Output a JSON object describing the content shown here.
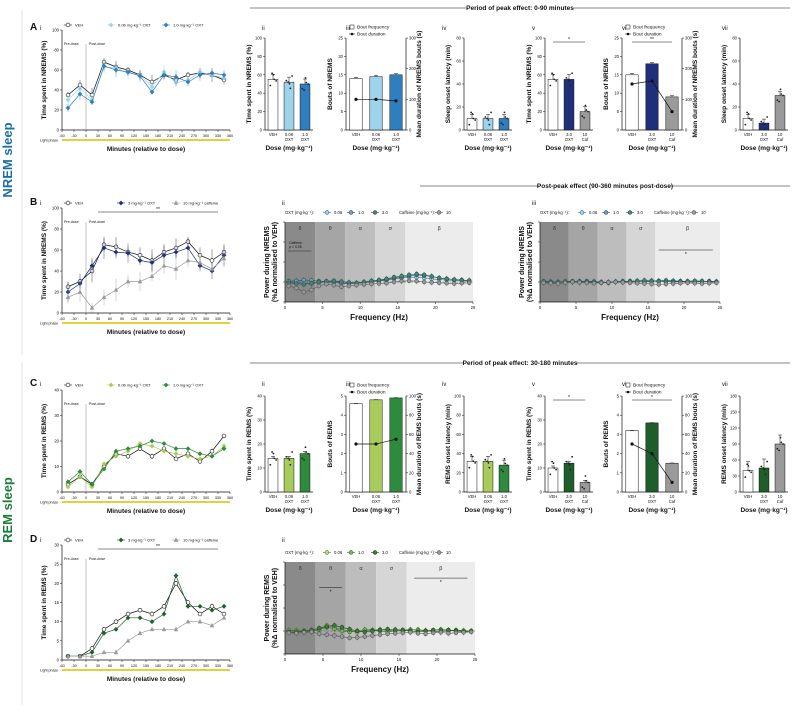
{
  "side_labels": {
    "nrem": "NREM sleep",
    "rem": "REM sleep"
  },
  "headers": {
    "a": "Period of peak effect: 0-90 minutes",
    "b": "Post-peak effect (90-360 minutes post-dose)",
    "c": "Period of peak effect: 30-180 minutes"
  },
  "panel_letters": {
    "A": "A",
    "B": "B",
    "C": "C",
    "D": "D"
  },
  "sub_numerals": [
    "i",
    "ii",
    "iii",
    "iv",
    "v",
    "vi",
    "vii"
  ],
  "colors": {
    "veh": "#ffffff",
    "oxt_low": "#9fd3ec",
    "oxt_high": "#2f7fbf",
    "oxt3": "#1f2f7a",
    "caf": "#9a9a9a",
    "green_low": "#a8cc5c",
    "green_high": "#2e8a3c",
    "green_dark": "#1e5e2a",
    "rem_accent": "#1b7d3a",
    "nrem_accent": "#1b6fa8"
  },
  "common": {
    "time_xlabel": "Minutes (relative to dose)",
    "predose": "Pre-dose",
    "postdose": "Post-dose",
    "light_phase": "Light phase",
    "dose_label": "Dose (mg·kg⁻¹)",
    "freq_label": "Frequency (Hz)",
    "bout_freq": "Bout frequency",
    "bout_dur": "Bout duration",
    "time_ticks": [
      "-60",
      "-30",
      "0",
      "30",
      "60",
      "90",
      "120",
      "150",
      "180",
      "210",
      "240",
      "270",
      "300",
      "330",
      "360"
    ],
    "band_labels": [
      "δ",
      "θ",
      "α",
      "σ",
      "β"
    ],
    "freq_ticks": [
      "0",
      "5",
      "10",
      "15",
      "20",
      "25"
    ],
    "star": "*",
    "dstar": "**",
    "oxt_prefix": "OXT (mg·kg⁻¹):",
    "caf_prefix": "Caffeine (mg·kg⁻¹):"
  },
  "legends": {
    "veh": "VEH",
    "a_low": "0.06 mg·kg⁻¹ OXT",
    "a_high": "1.0 mg·kg⁻¹ OXT",
    "b_oxt": "3 mg·kg⁻¹ OXT",
    "b_caf": "10 mg·kg⁻¹ caffeine",
    "spec_vals": [
      "0.06",
      "1.0",
      "3.0",
      "10"
    ],
    "caffeine_note": "Caffeine\np < 0.05"
  },
  "dose_groups": {
    "g1": [
      "VEH",
      "0.06\nOXT",
      "1.0\nOXT"
    ],
    "g2": [
      "VEH",
      "3.0\nOXT",
      "10\nCaf"
    ]
  },
  "ylabels": {
    "a_i": "Time spent in NREMS (%)",
    "a_ii": "Time spent in NREMS (%)",
    "a_iii": "Bouts of NREMS",
    "a_iii_r": "Mean duration of NREMS bouts (s)",
    "a_iv": "Sleep onset latency (min)",
    "a_v": "Time spent in NREMS (%)",
    "a_vi": "Bouts of NREMS",
    "a_vi_r": "Mean duration of NREMS bouts (s)",
    "a_vii": "Sleep onset latency (min)",
    "b_i": "Time spent in NREMS (%)",
    "b_spec": "Power during NREMS\n(%Δ normalised to VEH)",
    "c_i": "Time spent in REMS (%)",
    "c_ii": "Time spent in REMS (%)",
    "c_iii": "Bouts of REMS",
    "c_iii_r": "Mean duration of REMS bouts (s)",
    "c_iv": "REMS onset latency (min)",
    "c_v": "Time spent in REMS (%)",
    "c_vi": "Bouts of REMS",
    "c_vi_r": "Mean duration of REMS bouts (s)",
    "c_vii": "REMS onset latency (min)",
    "d_i": "Time spent in REMS (%)",
    "d_spec": "Power during REMS\n(%Δ normalised to VEH)"
  },
  "chart_data": [
    {
      "id": "A_i",
      "type": "line",
      "title": "",
      "xlabel": "Minutes (relative to dose)",
      "ylabel": "Time spent in NREMS (%)",
      "xlim": [
        -60,
        360
      ],
      "ylim": [
        0,
        100
      ],
      "x": [
        -45,
        -15,
        15,
        45,
        75,
        105,
        135,
        165,
        195,
        225,
        255,
        285,
        315,
        345
      ],
      "series": [
        {
          "name": "VEH",
          "values": [
            35,
            45,
            35,
            68,
            63,
            60,
            55,
            48,
            55,
            50,
            55,
            57,
            55,
            50
          ]
        },
        {
          "name": "0.06 mg·kg⁻¹ OXT",
          "values": [
            30,
            42,
            30,
            63,
            62,
            57,
            55,
            43,
            58,
            47,
            50,
            58,
            55,
            52
          ]
        },
        {
          "name": "1.0 mg·kg⁻¹ OXT",
          "values": [
            22,
            36,
            28,
            64,
            60,
            58,
            54,
            38,
            55,
            53,
            48,
            55,
            57,
            55
          ]
        }
      ]
    },
    {
      "id": "A_ii",
      "type": "bar",
      "categories": [
        "VEH",
        "0.06 OXT",
        "1.0 OXT"
      ],
      "values": [
        55,
        52,
        50
      ],
      "ylim": [
        0,
        100
      ],
      "ylabel": "Time spent in NREMS (%)"
    },
    {
      "id": "A_iii",
      "type": "bar",
      "categories": [
        "VEH",
        "0.06 OXT",
        "1.0 OXT"
      ],
      "values": [
        14,
        14.5,
        15
      ],
      "ylim": [
        0,
        25
      ],
      "line_values": [
        100,
        100,
        95
      ],
      "ylim_right": [
        0,
        300
      ]
    },
    {
      "id": "A_iv",
      "type": "bar",
      "categories": [
        "VEH",
        "0.06 OXT",
        "1.0 OXT"
      ],
      "values": [
        10,
        10,
        10
      ],
      "ylim": [
        0,
        80
      ],
      "ylabel": "Sleep onset latency (min)"
    },
    {
      "id": "A_v",
      "type": "bar",
      "categories": [
        "VEH",
        "3.0 OXT",
        "10 Caf"
      ],
      "values": [
        55,
        55,
        20
      ],
      "ylim": [
        0,
        100
      ],
      "ylabel": "Time spent in NREMS (%)"
    },
    {
      "id": "A_vi",
      "type": "bar",
      "categories": [
        "VEH",
        "3.0 OXT",
        "10 Caf"
      ],
      "values": [
        15,
        18,
        9
      ],
      "ylim": [
        0,
        25
      ],
      "line_values": [
        150,
        160,
        60
      ],
      "ylim_right": [
        0,
        300
      ]
    },
    {
      "id": "A_vii",
      "type": "bar",
      "categories": [
        "VEH",
        "3.0 OXT",
        "10 Caf"
      ],
      "values": [
        10,
        6,
        30
      ],
      "ylim": [
        0,
        80
      ],
      "ylabel": "Sleep onset latency (min)"
    },
    {
      "id": "B_i",
      "type": "line",
      "xlim": [
        -60,
        360
      ],
      "ylim": [
        0,
        100
      ],
      "x": [
        -45,
        -15,
        15,
        45,
        75,
        105,
        135,
        165,
        195,
        225,
        255,
        285,
        315,
        345
      ],
      "series": [
        {
          "name": "VEH",
          "values": [
            25,
            30,
            40,
            65,
            63,
            58,
            55,
            50,
            58,
            62,
            68,
            55,
            50,
            58
          ]
        },
        {
          "name": "3 mg·kg⁻¹ OXT",
          "values": [
            20,
            28,
            45,
            62,
            58,
            57,
            50,
            48,
            55,
            58,
            62,
            45,
            40,
            55
          ]
        },
        {
          "name": "10 mg·kg⁻¹ caffeine",
          "values": [
            15,
            20,
            5,
            15,
            22,
            30,
            30,
            35,
            45,
            42,
            50,
            48,
            42,
            52
          ]
        }
      ]
    },
    {
      "id": "B_ii",
      "type": "line",
      "xlim": [
        0,
        25
      ],
      "ylim": [
        -50,
        150
      ],
      "x": [
        0.5,
        1.5,
        2.5,
        3.5,
        4.5,
        5.5,
        6.5,
        7.5,
        8.5,
        9.5,
        10.5,
        11.5,
        12.5,
        13.5,
        14.5,
        15.5,
        16.5,
        17.5,
        18.5,
        19.5,
        20.5,
        21.5,
        22.5,
        23.5,
        24.5
      ],
      "series": [
        {
          "name": "0.06",
          "values": [
            0,
            -2,
            -3,
            -5,
            -2,
            0,
            2,
            0,
            -2,
            -3,
            0,
            2,
            3,
            4,
            8,
            10,
            12,
            12,
            10,
            8,
            6,
            5,
            4,
            3,
            2
          ]
        },
        {
          "name": "1.0",
          "values": [
            2,
            3,
            5,
            4,
            2,
            0,
            -1,
            -3,
            -4,
            -3,
            -2,
            0,
            4,
            6,
            10,
            12,
            15,
            18,
            16,
            14,
            10,
            8,
            6,
            5,
            3
          ]
        },
        {
          "name": "3.0",
          "values": [
            -2,
            -4,
            -6,
            -3,
            0,
            2,
            3,
            1,
            -1,
            -2,
            0,
            3,
            5,
            8,
            12,
            15,
            18,
            20,
            18,
            14,
            10,
            8,
            6,
            5,
            4
          ]
        },
        {
          "name": "10 caffeine",
          "values": [
            -10,
            -15,
            -25,
            -20,
            -10,
            -5,
            -8,
            -12,
            -10,
            -8,
            -6,
            -5,
            -4,
            -3,
            0,
            2,
            3,
            2,
            0,
            -1,
            -2,
            -3,
            -4,
            -3,
            -2
          ]
        }
      ]
    },
    {
      "id": "B_iii",
      "type": "line",
      "xlim": [
        0,
        25
      ],
      "ylim": [
        -50,
        150
      ],
      "x": [
        0.5,
        1.5,
        2.5,
        3.5,
        4.5,
        5.5,
        6.5,
        7.5,
        8.5,
        9.5,
        10.5,
        11.5,
        12.5,
        13.5,
        14.5,
        15.5,
        16.5,
        17.5,
        18.5,
        19.5,
        20.5,
        21.5,
        22.5,
        23.5,
        24.5
      ],
      "series": [
        {
          "name": "0.06",
          "values": [
            0,
            1,
            0,
            -1,
            0,
            2,
            1,
            0,
            -1,
            0,
            1,
            2,
            1,
            0,
            2,
            3,
            2,
            3,
            2,
            1,
            0,
            1,
            2,
            1,
            0
          ]
        },
        {
          "name": "1.0",
          "values": [
            2,
            0,
            -1,
            1,
            0,
            -1,
            2,
            1,
            0,
            -2,
            0,
            1,
            2,
            1,
            0,
            2,
            3,
            4,
            3,
            2,
            1,
            0,
            1,
            2,
            1
          ]
        },
        {
          "name": "3.0",
          "values": [
            -1,
            -2,
            0,
            1,
            2,
            1,
            0,
            -1,
            -2,
            -1,
            0,
            1,
            2,
            3,
            4,
            3,
            2,
            1,
            0,
            1,
            2,
            3,
            2,
            1,
            0
          ]
        },
        {
          "name": "10 caffeine",
          "values": [
            -2,
            -3,
            -4,
            -2,
            0,
            -1,
            -2,
            -3,
            -2,
            -1,
            0,
            -1,
            -2,
            -3,
            -4,
            -5,
            -6,
            -5,
            -4,
            -3,
            -2,
            -3,
            -4,
            -3,
            -2
          ]
        }
      ]
    },
    {
      "id": "C_i",
      "type": "line",
      "xlim": [
        -60,
        360
      ],
      "ylim": [
        0,
        40
      ],
      "x": [
        -45,
        -15,
        15,
        45,
        75,
        105,
        135,
        165,
        195,
        225,
        255,
        285,
        315,
        345
      ],
      "series": [
        {
          "name": "VEH",
          "values": [
            3,
            6,
            3,
            10,
            15,
            14,
            17,
            14,
            17,
            13,
            15,
            12,
            16,
            22
          ]
        },
        {
          "name": "0.06 mg·kg⁻¹ OXT",
          "values": [
            2,
            6,
            2,
            11,
            14,
            16,
            19,
            18,
            16,
            15,
            14,
            13,
            14,
            18
          ]
        },
        {
          "name": "1.0 mg·kg⁻¹ OXT",
          "values": [
            4,
            8,
            3,
            9,
            16,
            17,
            18,
            20,
            19,
            17,
            17,
            15,
            14,
            17
          ]
        }
      ]
    },
    {
      "id": "C_ii",
      "type": "bar",
      "categories": [
        "VEH",
        "0.06 OXT",
        "1.0 OXT"
      ],
      "values": [
        14,
        14,
        16
      ],
      "ylim": [
        0,
        40
      ]
    },
    {
      "id": "C_iii",
      "type": "bar",
      "categories": [
        "VEH",
        "0.06 OXT",
        "1.0 OXT"
      ],
      "values": [
        4.6,
        4.8,
        4.9
      ],
      "ylim": [
        0,
        5
      ],
      "line_values": [
        50,
        50,
        55
      ],
      "ylim_right": [
        0,
        100
      ]
    },
    {
      "id": "C_iv",
      "type": "bar",
      "categories": [
        "VEH",
        "0.06 OXT",
        "1.0 OXT"
      ],
      "values": [
        32,
        32,
        28
      ],
      "ylim": [
        0,
        100
      ]
    },
    {
      "id": "C_v",
      "type": "bar",
      "categories": [
        "VEH",
        "3.0 OXT",
        "10 Caf"
      ],
      "values": [
        10,
        12,
        4
      ],
      "ylim": [
        0,
        40
      ]
    },
    {
      "id": "C_vi",
      "type": "bar",
      "categories": [
        "VEH",
        "3.0 OXT",
        "10 Caf"
      ],
      "values": [
        3.2,
        3.6,
        1.5
      ],
      "ylim": [
        0,
        5
      ],
      "line_values": [
        50,
        40,
        10
      ],
      "ylim_right": [
        0,
        100
      ]
    },
    {
      "id": "C_vii",
      "type": "bar",
      "categories": [
        "VEH",
        "3.0 OXT",
        "10 Caf"
      ],
      "values": [
        40,
        45,
        90
      ],
      "ylim": [
        0,
        180
      ]
    },
    {
      "id": "D_i",
      "type": "line",
      "xlim": [
        -60,
        360
      ],
      "ylim": [
        0,
        30
      ],
      "x": [
        -45,
        -15,
        15,
        45,
        75,
        105,
        135,
        165,
        195,
        225,
        255,
        285,
        315,
        345
      ],
      "series": [
        {
          "name": "VEH",
          "values": [
            1,
            1,
            3,
            8,
            10,
            12,
            13,
            12,
            14,
            20,
            15,
            12,
            14,
            12
          ]
        },
        {
          "name": "3 mg·kg⁻¹ OXT",
          "values": [
            1,
            1,
            2,
            7,
            8,
            11,
            11,
            10,
            12,
            22,
            14,
            14,
            13,
            14
          ]
        },
        {
          "name": "10 mg·kg⁻¹ caffeine",
          "values": [
            1,
            1,
            1,
            2,
            2,
            5,
            7,
            8,
            8,
            8,
            10,
            10,
            9,
            11
          ]
        }
      ]
    },
    {
      "id": "D_ii",
      "type": "line",
      "xlim": [
        0,
        25
      ],
      "ylim": [
        -50,
        150
      ],
      "x": [
        0.5,
        1.5,
        2.5,
        3.5,
        4.5,
        5.5,
        6.5,
        7.5,
        8.5,
        9.5,
        10.5,
        11.5,
        12.5,
        13.5,
        14.5,
        15.5,
        16.5,
        17.5,
        18.5,
        19.5,
        20.5,
        21.5,
        22.5,
        23.5,
        24.5
      ],
      "series": [
        {
          "name": "0.06",
          "values": [
            0,
            2,
            0,
            -2,
            5,
            12,
            8,
            3,
            0,
            -3,
            0,
            2,
            3,
            2,
            1,
            0,
            2,
            3,
            1,
            0,
            -2,
            0,
            2,
            1,
            0
          ]
        },
        {
          "name": "1.0",
          "values": [
            2,
            0,
            -3,
            0,
            3,
            8,
            5,
            0,
            -2,
            0,
            3,
            2,
            0,
            -2,
            0,
            2,
            3,
            2,
            0,
            -1,
            0,
            2,
            1,
            0,
            -1
          ]
        },
        {
          "name": "3.0",
          "values": [
            -2,
            -3,
            0,
            2,
            6,
            10,
            12,
            8,
            4,
            0,
            -2,
            0,
            2,
            4,
            3,
            2,
            0,
            -2,
            0,
            2,
            3,
            2,
            0,
            -2,
            0
          ]
        },
        {
          "name": "10 caffeine",
          "values": [
            -4,
            -5,
            -3,
            -2,
            -6,
            -8,
            -10,
            -12,
            -15,
            -14,
            -12,
            -10,
            -8,
            -6,
            -5,
            -4,
            -3,
            -5,
            -6,
            -4,
            -3,
            -5,
            -4,
            -3,
            -2
          ]
        }
      ]
    }
  ]
}
